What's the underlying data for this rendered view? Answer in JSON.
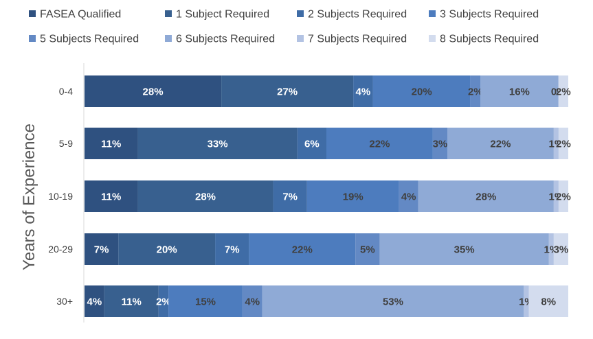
{
  "chart_data": {
    "type": "bar",
    "orientation": "horizontal",
    "stacked": true,
    "normalized": true,
    "title": "",
    "xlabel": "",
    "ylabel": "Years of Experience",
    "legend_position": "top",
    "grid": false,
    "categories": [
      "0-4",
      "5-9",
      "10-19",
      "20-29",
      "30+"
    ],
    "series": [
      {
        "name": "FASEA Qualified",
        "color": "#2f5180",
        "label_color": "#ffffff",
        "values": [
          28,
          11,
          11,
          7,
          4
        ]
      },
      {
        "name": "1 Subject Required",
        "color": "#38608f",
        "label_color": "#ffffff",
        "values": [
          27,
          33,
          28,
          20,
          11
        ]
      },
      {
        "name": "2 Subjects Required",
        "color": "#3f6ca6",
        "label_color": "#ffffff",
        "values": [
          4,
          6,
          7,
          7,
          2
        ]
      },
      {
        "name": "3 Subjects Required",
        "color": "#4d7cbe",
        "label_color": "#404040",
        "values": [
          20,
          22,
          19,
          22,
          15
        ]
      },
      {
        "name": "5 Subjects Required",
        "color": "#6389c4",
        "label_color": "#404040",
        "values": [
          2,
          3,
          4,
          5,
          4
        ]
      },
      {
        "name": "6 Subjects Required",
        "color": "#8faad6",
        "label_color": "#404040",
        "values": [
          16,
          22,
          28,
          35,
          53
        ]
      },
      {
        "name": "7 Subjects Required",
        "color": "#b3c3e3",
        "label_color": "#404040",
        "values": [
          0,
          1,
          1,
          1,
          1
        ]
      },
      {
        "name": "8 Subjects Required",
        "color": "#d3dcee",
        "label_color": "#404040",
        "values": [
          2,
          2,
          2,
          3,
          8
        ]
      }
    ]
  }
}
